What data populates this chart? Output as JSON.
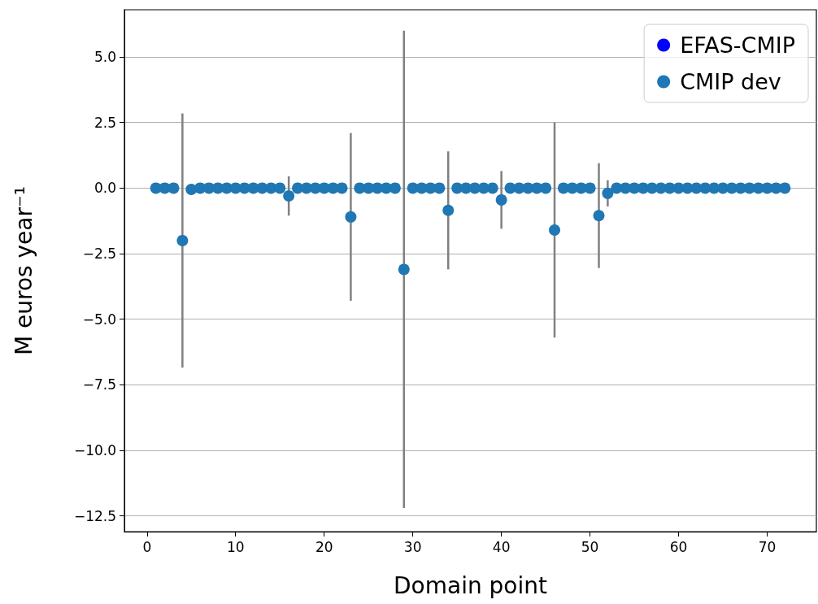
{
  "chart_data": {
    "type": "scatter",
    "xlabel": "Domain point",
    "ylabel": "M euros year⁻¹",
    "x": [
      1,
      2,
      3,
      4,
      5,
      6,
      7,
      8,
      9,
      10,
      11,
      12,
      13,
      14,
      15,
      16,
      17,
      18,
      19,
      20,
      21,
      22,
      23,
      24,
      25,
      26,
      27,
      28,
      29,
      30,
      31,
      32,
      33,
      34,
      35,
      36,
      37,
      38,
      39,
      40,
      41,
      42,
      43,
      44,
      45,
      46,
      47,
      48,
      49,
      50,
      51,
      52,
      53,
      54,
      55,
      56,
      57,
      58,
      59,
      60,
      61,
      62,
      63,
      64,
      65,
      66,
      67,
      68,
      69,
      70,
      71,
      72
    ],
    "series": [
      {
        "name": "EFAS-CMIP",
        "color": "#0000ff",
        "values": [
          null,
          null,
          null,
          null,
          null,
          null,
          null,
          null,
          null,
          null,
          null,
          null,
          null,
          null,
          null,
          null,
          null,
          null,
          null,
          null,
          null,
          null,
          null,
          null,
          null,
          null,
          null,
          null,
          null,
          null,
          null,
          null,
          null,
          null,
          null,
          null,
          null,
          null,
          null,
          null,
          null,
          null,
          null,
          null,
          null,
          null,
          null,
          null,
          null,
          null,
          null,
          null,
          null,
          null,
          null,
          null,
          null,
          null,
          null,
          null,
          null,
          null,
          null,
          null,
          null,
          null,
          null,
          null,
          null,
          null,
          null,
          null
        ]
      },
      {
        "name": "CMIP dev",
        "color": "#1f77b4",
        "values": [
          0,
          0,
          0,
          -2.0,
          -0.05,
          0,
          0,
          0,
          0,
          0,
          0,
          0,
          0,
          0,
          0,
          -0.3,
          0,
          0,
          0,
          0,
          0,
          0,
          -1.1,
          0,
          0,
          0,
          0,
          0,
          -3.1,
          0,
          0,
          0,
          0,
          -0.85,
          0,
          0,
          0,
          0,
          0,
          -0.45,
          0,
          0,
          0,
          0,
          0,
          -1.6,
          0,
          0,
          0,
          0,
          -1.05,
          -0.2,
          0,
          0,
          0,
          0,
          0,
          0,
          0,
          0,
          0,
          0,
          0,
          0,
          0,
          0,
          0,
          0,
          0,
          0,
          0,
          0
        ],
        "errors": [
          null,
          null,
          null,
          4.85,
          null,
          null,
          null,
          null,
          null,
          null,
          null,
          null,
          null,
          null,
          null,
          0.75,
          null,
          null,
          null,
          null,
          null,
          null,
          3.2,
          null,
          null,
          null,
          null,
          null,
          9.1,
          null,
          null,
          null,
          null,
          2.25,
          null,
          null,
          null,
          null,
          null,
          1.1,
          null,
          null,
          null,
          null,
          null,
          4.1,
          null,
          null,
          null,
          null,
          2.0,
          0.5,
          null,
          null,
          null,
          null,
          null,
          null,
          null,
          null,
          null,
          null,
          null,
          null,
          null,
          null,
          null,
          null,
          null,
          null,
          null,
          null
        ]
      }
    ],
    "xlim": [
      -2.55,
      75.55
    ],
    "xticks": [
      0,
      10,
      20,
      30,
      40,
      50,
      60,
      70
    ],
    "ylim": [
      -13.1,
      6.8
    ],
    "yticks": [
      {
        "value": -12.5,
        "label": "−12.5"
      },
      {
        "value": -10,
        "label": "−10.0"
      },
      {
        "value": -7.5,
        "label": "−7.5"
      },
      {
        "value": -5,
        "label": "−5.0"
      },
      {
        "value": -2.5,
        "label": "−2.5"
      },
      {
        "value": 0,
        "label": "0.0"
      },
      {
        "value": 2.5,
        "label": "2.5"
      },
      {
        "value": 5,
        "label": "5.0"
      }
    ],
    "grid": "y",
    "legend": "top right",
    "marker": "circle"
  }
}
